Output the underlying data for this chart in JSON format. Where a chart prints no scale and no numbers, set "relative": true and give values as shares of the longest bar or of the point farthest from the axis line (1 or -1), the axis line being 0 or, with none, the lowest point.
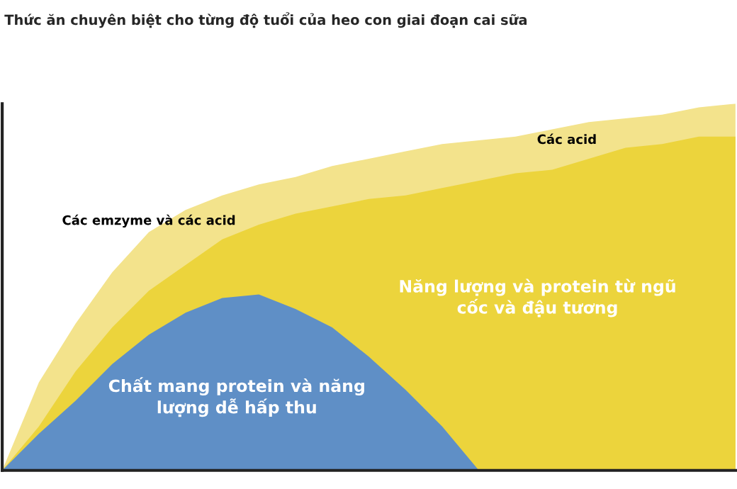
{
  "chart_data": {
    "type": "area",
    "relative": true,
    "title": "Thức ăn chuyên biệt cho từng độ tuổi của heo con giai đoạn cai sữa",
    "categories": [
      null,
      null,
      null,
      null,
      null,
      null,
      null,
      null,
      null,
      null,
      null,
      null,
      null,
      null,
      null,
      null,
      null,
      null,
      null,
      null,
      null
    ],
    "series": [
      {
        "color": "#f3e38c",
        "values": [
          0,
          0.24,
          0.4,
          0.54,
          0.65,
          0.71,
          0.75,
          0.78,
          0.8,
          0.83,
          0.85,
          0.87,
          0.89,
          0.9,
          0.91,
          0.93,
          0.95,
          0.96,
          0.97,
          0.99,
          1.0
        ]
      },
      {
        "color": "#ecd43c",
        "values": [
          0,
          0.12,
          0.27,
          0.39,
          0.49,
          0.56,
          0.63,
          0.67,
          0.7,
          0.72,
          0.74,
          0.75,
          0.77,
          0.79,
          0.81,
          0.82,
          0.85,
          0.88,
          0.89,
          0.91,
          0.91
        ]
      },
      {
        "color": "#5f8fc6",
        "values": [
          0,
          0.1,
          0.19,
          0.29,
          0.37,
          0.43,
          0.47,
          0.48,
          0.44,
          0.39,
          0.31,
          0.22,
          0.12,
          0,
          0,
          0,
          0,
          0,
          0,
          0,
          0
        ]
      }
    ],
    "annotations": [
      "Các emzyme và các acid",
      "Các acid",
      "Năng lượng và protein từ ngũ\ncốc và đậu tương",
      "Chất mang protein và năng\nlượng dễ hấp thu"
    ],
    "grid": false,
    "legend": false
  }
}
